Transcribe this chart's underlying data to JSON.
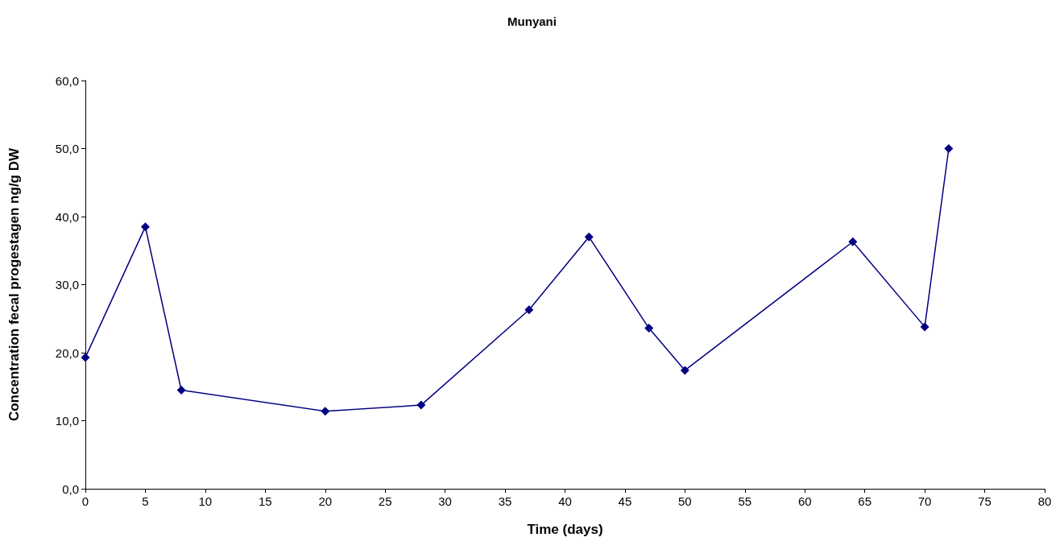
{
  "chart_data": {
    "type": "line",
    "title": "Munyani",
    "xlabel": "Time (days)",
    "ylabel": "Concentration fecal progestagen ng/g DW",
    "x": [
      0,
      5,
      8,
      20,
      28,
      37,
      42,
      47,
      50,
      64,
      70,
      72
    ],
    "series": [
      {
        "color": "#000080",
        "values": [
          19.3,
          38.5,
          14.5,
          11.4,
          12.3,
          26.3,
          37.0,
          23.6,
          17.4,
          36.3,
          23.8,
          50.0
        ]
      }
    ],
    "xlim": [
      0,
      80
    ],
    "xticks": [
      0,
      5,
      10,
      15,
      20,
      25,
      30,
      35,
      40,
      45,
      50,
      55,
      60,
      65,
      70,
      75,
      80
    ],
    "ylim": [
      0,
      60
    ],
    "yticks": [
      {
        "value": 0,
        "label": "0,0"
      },
      {
        "value": 10,
        "label": "10,0"
      },
      {
        "value": 20,
        "label": "20,0"
      },
      {
        "value": 30,
        "label": "30,0"
      },
      {
        "value": 40,
        "label": "40,0"
      },
      {
        "value": 50,
        "label": "50,0"
      },
      {
        "value": 60,
        "label": "60,0"
      }
    ],
    "grid": false,
    "marker": "diamond",
    "line_style": "solid"
  }
}
